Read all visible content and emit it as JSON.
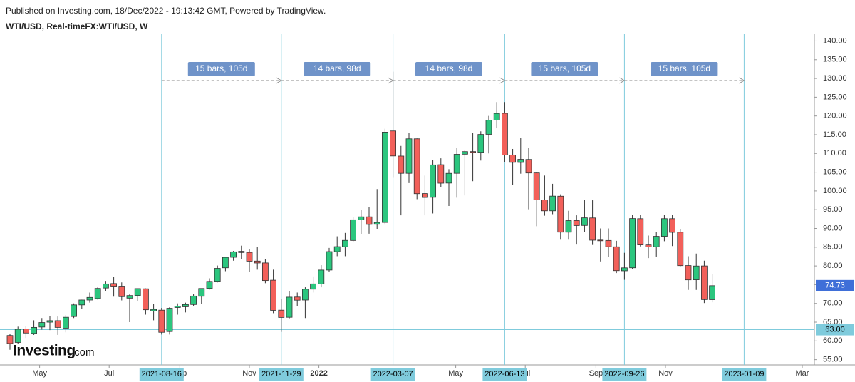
{
  "header": {
    "published": "Published on Investing.com, 18/Dec/2022 - 19:13:42 GMT, Powered by TradingView.",
    "symbol": "WTI/USD, Real-timeFX:WTI/USD, W"
  },
  "logo": {
    "brand": "Investing",
    "suffix": ".com"
  },
  "chart_data": {
    "type": "candlestick",
    "x": [
      "2021-04-05",
      "2021-04-12",
      "2021-04-19",
      "2021-04-26",
      "2021-05-03",
      "2021-05-10",
      "2021-05-17",
      "2021-05-24",
      "2021-05-31",
      "2021-06-07",
      "2021-06-14",
      "2021-06-21",
      "2021-06-28",
      "2021-07-05",
      "2021-07-12",
      "2021-07-19",
      "2021-07-26",
      "2021-08-02",
      "2021-08-09",
      "2021-08-16",
      "2021-08-23",
      "2021-08-30",
      "2021-09-06",
      "2021-09-13",
      "2021-09-20",
      "2021-09-27",
      "2021-10-04",
      "2021-10-11",
      "2021-10-18",
      "2021-10-25",
      "2021-11-01",
      "2021-11-08",
      "2021-11-15",
      "2021-11-22",
      "2021-11-29",
      "2021-12-06",
      "2021-12-13",
      "2021-12-20",
      "2021-12-27",
      "2022-01-03",
      "2022-01-10",
      "2022-01-17",
      "2022-01-24",
      "2022-01-31",
      "2022-02-07",
      "2022-02-14",
      "2022-02-21",
      "2022-02-28",
      "2022-03-07",
      "2022-03-14",
      "2022-03-21",
      "2022-03-28",
      "2022-04-04",
      "2022-04-11",
      "2022-04-18",
      "2022-04-25",
      "2022-05-02",
      "2022-05-09",
      "2022-05-16",
      "2022-05-23",
      "2022-05-30",
      "2022-06-06",
      "2022-06-13",
      "2022-06-20",
      "2022-06-27",
      "2022-07-04",
      "2022-07-11",
      "2022-07-18",
      "2022-07-25",
      "2022-08-01",
      "2022-08-08",
      "2022-08-15",
      "2022-08-22",
      "2022-08-29",
      "2022-09-05",
      "2022-09-12",
      "2022-09-19",
      "2022-09-26",
      "2022-10-03",
      "2022-10-10",
      "2022-10-17",
      "2022-10-24",
      "2022-10-31",
      "2022-11-07",
      "2022-11-14",
      "2022-11-21",
      "2022-11-28",
      "2022-12-05",
      "2022-12-12"
    ],
    "open": [
      61.45,
      59.6,
      63.2,
      62.0,
      63.7,
      65.0,
      65.4,
      63.4,
      66.5,
      69.6,
      70.9,
      71.3,
      74.1,
      75.3,
      74.6,
      71.4,
      72.1,
      73.9,
      68.0,
      68.2,
      62.5,
      68.9,
      69.1,
      69.7,
      71.9,
      74.0,
      75.9,
      79.5,
      82.3,
      83.9,
      83.6,
      81.3,
      80.8,
      76.2,
      68.2,
      66.3,
      71.7,
      70.9,
      73.8,
      75.2,
      78.9,
      83.8,
      85.1,
      86.8,
      92.3,
      93.1,
      91.1,
      91.6,
      116.0,
      109.3,
      104.7,
      113.9,
      99.3,
      98.3,
      107.0,
      102.1,
      104.7,
      109.8,
      110.5,
      110.3,
      115.1,
      118.9,
      120.7,
      109.6,
      107.6,
      108.4,
      104.8,
      97.6,
      94.7,
      98.6,
      89.0,
      92.1,
      90.8,
      92.8,
      86.9,
      86.8,
      85.1,
      78.7,
      79.5,
      92.6,
      85.6,
      85.1,
      87.9,
      92.6,
      89.0,
      80.1,
      76.3,
      80.0,
      71.0
    ],
    "high": [
      61.85,
      63.8,
      64.0,
      65.5,
      66.1,
      66.7,
      66.5,
      66.9,
      70.0,
      71.0,
      72.9,
      74.5,
      76.0,
      76.98,
      75.6,
      72.5,
      74.0,
      74.0,
      69.9,
      68.8,
      69.0,
      70.0,
      70.2,
      72.6,
      74.0,
      76.7,
      80.1,
      82.2,
      84.0,
      85.4,
      84.5,
      85.0,
      81.8,
      79.0,
      71.2,
      73.3,
      72.9,
      74.3,
      77.2,
      80.2,
      84.8,
      87.9,
      88.8,
      93.0,
      94.9,
      95.8,
      100.5,
      116.6,
      131.8,
      112.0,
      115.5,
      114.0,
      104.1,
      108.3,
      108.7,
      105.8,
      111.4,
      110.8,
      115.4,
      115.9,
      120.0,
      123.7,
      123.7,
      111.2,
      114.1,
      111.5,
      105.0,
      104.1,
      101.9,
      99.1,
      94.7,
      93.5,
      97.7,
      97.5,
      90.0,
      90.0,
      86.7,
      83.5,
      93.6,
      93.6,
      88.1,
      89.1,
      93.7,
      93.7,
      89.9,
      82.6,
      83.3,
      81.4,
      77.9
    ],
    "low": [
      57.63,
      59.2,
      60.8,
      61.6,
      63.0,
      62.9,
      61.6,
      62.3,
      66.1,
      68.5,
      70.2,
      71.0,
      73.3,
      71.8,
      70.8,
      65.0,
      70.6,
      67.0,
      65.5,
      61.7,
      61.7,
      67.0,
      67.6,
      69.2,
      69.8,
      73.7,
      75.6,
      78.6,
      81.4,
      81.8,
      78.3,
      79.0,
      75.4,
      67.4,
      62.4,
      66.0,
      69.3,
      66.1,
      72.9,
      74.3,
      78.5,
      82.6,
      82.6,
      86.5,
      88.4,
      88.6,
      89.8,
      91.0,
      103.5,
      93.5,
      102.1,
      97.8,
      93.5,
      94.0,
      101.1,
      96.0,
      98.2,
      98.8,
      102.6,
      108.1,
      110.0,
      116.7,
      107.6,
      101.5,
      104.6,
      95.1,
      90.6,
      93.4,
      93.8,
      87.0,
      87.0,
      85.7,
      89.0,
      85.6,
      81.2,
      82.4,
      78.1,
      76.3,
      79.1,
      85.2,
      82.1,
      82.5,
      86.6,
      85.3,
      79.9,
      73.6,
      73.6,
      70.1,
      70.3
    ],
    "close": [
      59.32,
      63.1,
      62.1,
      63.6,
      64.9,
      65.4,
      63.6,
      66.3,
      69.6,
      70.9,
      71.6,
      74.0,
      75.2,
      74.6,
      71.8,
      72.1,
      73.95,
      68.3,
      68.4,
      62.3,
      68.7,
      69.3,
      69.7,
      71.97,
      73.98,
      75.88,
      79.35,
      82.28,
      83.76,
      83.57,
      81.27,
      80.79,
      76.1,
      68.15,
      66.26,
      71.67,
      70.86,
      73.79,
      75.21,
      78.9,
      83.82,
      85.14,
      86.82,
      92.31,
      93.1,
      91.07,
      91.59,
      115.68,
      109.33,
      104.7,
      113.9,
      99.27,
      98.26,
      106.95,
      102.07,
      104.69,
      109.77,
      110.49,
      110.28,
      115.07,
      118.87,
      120.67,
      109.56,
      107.62,
      108.43,
      104.79,
      97.59,
      94.7,
      98.62,
      89.01,
      92.09,
      90.77,
      92.83,
      86.87,
      86.79,
      85.11,
      78.74,
      79.49,
      92.64,
      85.61,
      85.05,
      87.9,
      92.61,
      88.96,
      80.08,
      76.28,
      79.98,
      71.02,
      74.73
    ],
    "up_color": "#2bc67e",
    "down_color": "#f2605a",
    "ylim": [
      53.6,
      141.8
    ],
    "yticks": [
      {
        "value": 55,
        "label": "55.00"
      },
      {
        "value": 60,
        "label": "60.00"
      },
      {
        "value": 65,
        "label": "65.00"
      },
      {
        "value": 70,
        "label": "70.00"
      },
      {
        "value": 75,
        "label": "75.00"
      },
      {
        "value": 80,
        "label": "80.00"
      },
      {
        "value": 85,
        "label": "85.00"
      },
      {
        "value": 90,
        "label": "90.00"
      },
      {
        "value": 95,
        "label": "95.00"
      },
      {
        "value": 100,
        "label": "100.00"
      },
      {
        "value": 105,
        "label": "105.00"
      },
      {
        "value": 110,
        "label": "110.00"
      },
      {
        "value": 115,
        "label": "115.00"
      },
      {
        "value": 120,
        "label": "120.00"
      },
      {
        "value": 125,
        "label": "125.00"
      },
      {
        "value": 130,
        "label": "130.00"
      },
      {
        "value": 135,
        "label": "135.00"
      },
      {
        "value": 140,
        "label": "140.00"
      }
    ],
    "xticks": [
      {
        "value": "2021-05-01",
        "label": "May"
      },
      {
        "value": "2021-07-01",
        "label": "Jul"
      },
      {
        "value": "2021-09-01",
        "label": "Sep"
      },
      {
        "value": "2021-11-01",
        "label": "Nov"
      },
      {
        "value": "2022-01-01",
        "label": "2022"
      },
      {
        "value": "2022-05-01",
        "label": "May"
      },
      {
        "value": "2022-07-01",
        "label": "Jul"
      },
      {
        "value": "2022-09-01",
        "label": "Sep"
      },
      {
        "value": "2022-11-01",
        "label": "Nov"
      },
      {
        "value": "2023-03-01",
        "label": "Mar"
      }
    ],
    "vlines": [
      "2021-08-16",
      "2021-11-29",
      "2022-03-07",
      "2022-06-13",
      "2022-09-26",
      "2023-01-09"
    ],
    "measurements": [
      "15 bars, 105d",
      "14 bars, 98d",
      "14 bars, 98d",
      "15 bars, 105d",
      "15 bars, 105d"
    ],
    "hline": {
      "value": 63,
      "label": "63.00"
    }
  }
}
